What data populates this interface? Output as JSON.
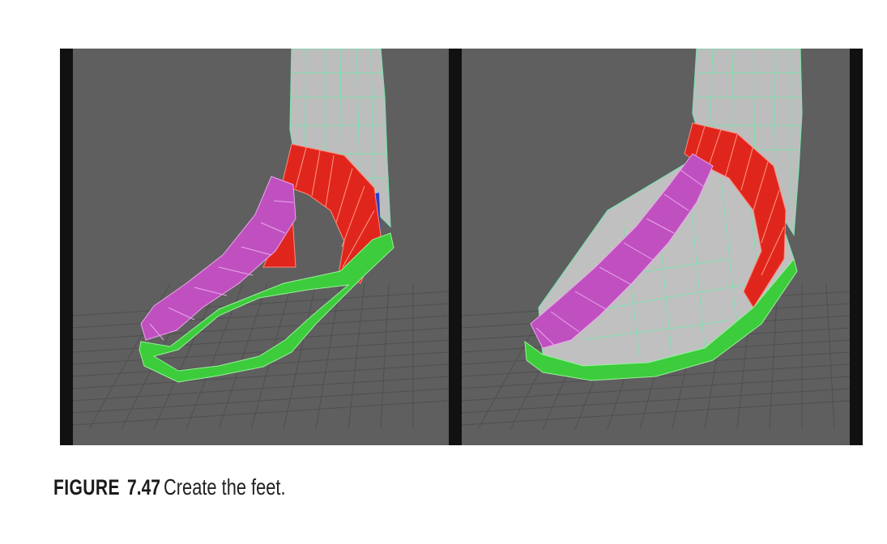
{
  "figure": {
    "label": "FIGURE",
    "number": "7.47",
    "caption": "Create the feet."
  },
  "viewports": {
    "left": {
      "description_icon": "foot-edge-loops-icon"
    },
    "right": {
      "description_icon": "foot-filled-mesh-icon"
    }
  },
  "colors": {
    "background": "#5f5f5f",
    "mesh_gray": "#bdbdbd",
    "wire": "#7fe0b0",
    "red": "#e0261c",
    "magenta": "#c050c0",
    "green": "#3ccc3c",
    "blue": "#2a3fc8",
    "grid": "#4e4e4e"
  }
}
